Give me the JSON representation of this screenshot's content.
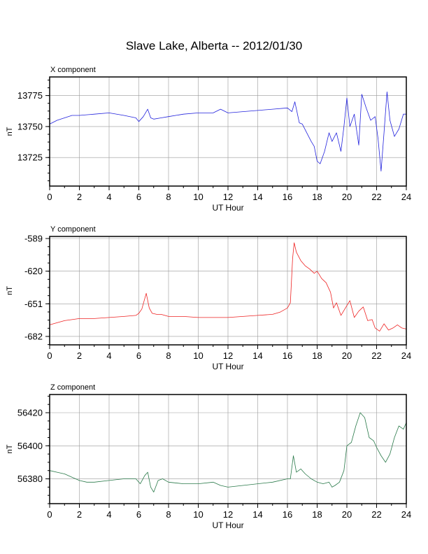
{
  "title": "Slave Lake, Alberta -- 2012/01/30",
  "chart_data": [
    {
      "type": "line",
      "panel_label": "X component",
      "xlabel": "UT Hour",
      "ylabel": "nT",
      "xlim": [
        0,
        24
      ],
      "ylim": [
        13702,
        13790
      ],
      "xticks": [
        0,
        2,
        4,
        6,
        8,
        10,
        12,
        14,
        16,
        18,
        20,
        22,
        24
      ],
      "yticks": [
        13725,
        13750,
        13775
      ],
      "grid": true,
      "color": "#2222dd",
      "series": [
        {
          "x": [
            0,
            0.5,
            1,
            1.5,
            2,
            3,
            4,
            5,
            5.8,
            6.0,
            6.3,
            6.6,
            6.8,
            7,
            7.5,
            8,
            9,
            10,
            11,
            11.5,
            12,
            13,
            14,
            15,
            16,
            16.3,
            16.5,
            16.8,
            17,
            17.3,
            17.6,
            17.8,
            18,
            18.2,
            18.5,
            18.8,
            19,
            19.3,
            19.6,
            19.8,
            20,
            20.2,
            20.5,
            20.8,
            21,
            21.3,
            21.6,
            21.9,
            22.1,
            22.3,
            22.5,
            22.7,
            22.9,
            23.2,
            23.5,
            23.8,
            24
          ],
          "y": [
            13752,
            13755,
            13757,
            13759,
            13759,
            13760,
            13761,
            13759,
            13757,
            13754,
            13758,
            13764,
            13757,
            13756,
            13757,
            13758,
            13760,
            13761,
            13761,
            13764,
            13761,
            13762,
            13763,
            13764,
            13765,
            13762,
            13770,
            13753,
            13752,
            13745,
            13738,
            13734,
            13722,
            13720,
            13730,
            13745,
            13738,
            13745,
            13730,
            13750,
            13773,
            13750,
            13760,
            13735,
            13776,
            13765,
            13755,
            13758,
            13740,
            13714,
            13745,
            13778,
            13755,
            13742,
            13748,
            13760,
            13760
          ]
        }
      ]
    },
    {
      "type": "line",
      "panel_label": "Y component",
      "xlabel": "UT Hour",
      "ylabel": "nT",
      "xlim": [
        0,
        24
      ],
      "ylim": [
        -690,
        -587
      ],
      "xticks": [
        0,
        2,
        4,
        6,
        8,
        10,
        12,
        14,
        16,
        18,
        20,
        22,
        24
      ],
      "yticks": [
        -589,
        -620,
        -651,
        -682
      ],
      "grid": true,
      "color": "#ee2222",
      "series": [
        {
          "x": [
            0,
            0.5,
            1,
            1.5,
            2,
            3,
            4,
            5,
            5.8,
            6.0,
            6.2,
            6.5,
            6.7,
            6.9,
            7.2,
            7.5,
            8,
            9,
            10,
            11,
            12,
            13,
            14,
            15,
            15.5,
            16,
            16.2,
            16.35,
            16.45,
            16.6,
            16.9,
            17.2,
            17.5,
            17.8,
            18,
            18.3,
            18.6,
            18.9,
            19.1,
            19.3,
            19.6,
            19.9,
            20.2,
            20.5,
            20.8,
            21.1,
            21.4,
            21.7,
            21.9,
            22.2,
            22.5,
            22.8,
            23.1,
            23.4,
            23.7,
            24
          ],
          "y": [
            -671,
            -669,
            -667,
            -666,
            -665,
            -665,
            -664,
            -663,
            -662,
            -660,
            -656,
            -641,
            -655,
            -660,
            -661,
            -661,
            -663,
            -663,
            -664,
            -664,
            -664,
            -663,
            -662,
            -661,
            -659,
            -655,
            -650,
            -608,
            -593,
            -602,
            -610,
            -615,
            -618,
            -622,
            -620,
            -627,
            -631,
            -640,
            -655,
            -650,
            -662,
            -655,
            -648,
            -664,
            -658,
            -654,
            -667,
            -666,
            -674,
            -677,
            -670,
            -676,
            -674,
            -671,
            -674,
            -675
          ]
        }
      ]
    },
    {
      "type": "line",
      "panel_label": "Z component",
      "xlabel": "UT Hour",
      "ylabel": "nT",
      "xlim": [
        0,
        24
      ],
      "ylim": [
        56365,
        56431
      ],
      "xticks": [
        0,
        2,
        4,
        6,
        8,
        10,
        12,
        14,
        16,
        18,
        20,
        22,
        24
      ],
      "yticks": [
        56380,
        56400,
        56420
      ],
      "grid": true,
      "color": "#2a7a4a",
      "series": [
        {
          "x": [
            0,
            0.5,
            1,
            1.5,
            2,
            2.5,
            3,
            4,
            5,
            5.8,
            6.1,
            6.4,
            6.6,
            6.8,
            7.0,
            7.3,
            7.6,
            8,
            9,
            10,
            11,
            11.5,
            12,
            13,
            14,
            15,
            16,
            16.2,
            16.4,
            16.6,
            16.9,
            17.2,
            17.6,
            18,
            18.4,
            18.8,
            19.0,
            19.2,
            19.5,
            19.8,
            20,
            20.3,
            20.6,
            20.9,
            21.2,
            21.5,
            21.8,
            22.0,
            22.3,
            22.6,
            22.9,
            23.2,
            23.5,
            23.8,
            24
          ],
          "y": [
            56385,
            56384,
            56383,
            56381,
            56379,
            56378,
            56378,
            56379,
            56380,
            56380,
            56377,
            56382,
            56384,
            56375,
            56372,
            56379,
            56380,
            56378,
            56377,
            56377,
            56378,
            56376,
            56375,
            56376,
            56377,
            56378,
            56380,
            56380,
            56394,
            56384,
            56386,
            56383,
            56380,
            56378,
            56377,
            56378,
            56375,
            56376,
            56378,
            56385,
            56400,
            56402,
            56412,
            56420,
            56417,
            56405,
            56403,
            56399,
            56394,
            56390,
            56395,
            56405,
            56412,
            56410,
            56414
          ]
        }
      ]
    }
  ]
}
